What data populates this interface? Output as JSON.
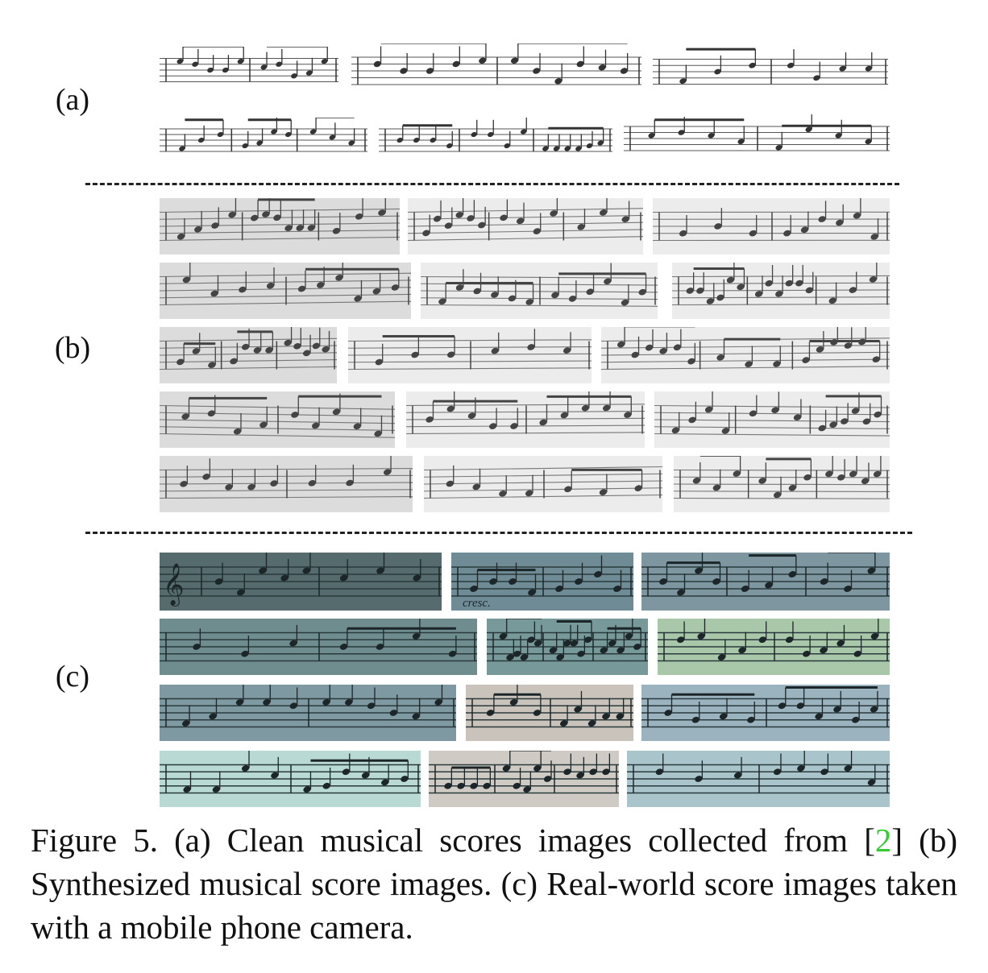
{
  "figure": {
    "panel_labels": {
      "a": "(a)",
      "b": "(b)",
      "c": "(c)"
    },
    "caption": {
      "before_cite": "Figure 5. (a) Clean musical scores images collected from [",
      "cite": "2",
      "after_cite": "] (b) Synthesized musical score images.  (c) Real-world score images taken with a mobile phone camera."
    },
    "score_annotations": {
      "cresc": "cresc."
    },
    "colors": {
      "cite_link": "#33cc33",
      "clean_bg": "#ffffff",
      "synth_bg": "#e9e9e9",
      "real_bg": "#5f7a7a"
    }
  }
}
